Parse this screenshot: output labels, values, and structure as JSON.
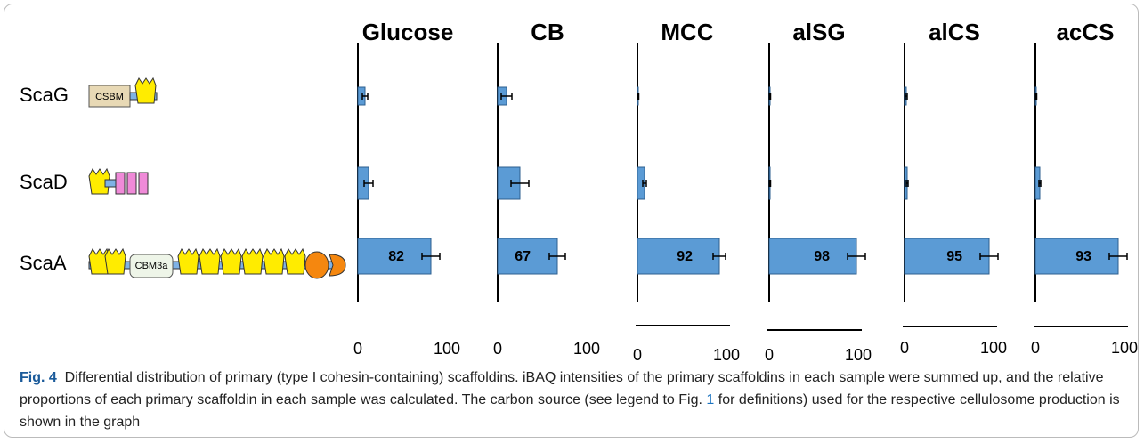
{
  "rows": [
    "ScaG",
    "ScaD",
    "ScaA"
  ],
  "diagrams": {
    "scag_module": "CSBM",
    "scaa_module": "CBM3a"
  },
  "chart_data": [
    {
      "type": "bar",
      "orientation": "horizontal",
      "title": "Glucose",
      "values": [
        8,
        12,
        82
      ],
      "errors": [
        3,
        5,
        10
      ],
      "data_labels": [
        false,
        false,
        true
      ],
      "color": "#5b9bd5",
      "xlim": [
        0,
        100
      ],
      "xticks": [
        0,
        100
      ]
    },
    {
      "type": "bar",
      "orientation": "horizontal",
      "title": "CB",
      "values": [
        10,
        25,
        67
      ],
      "errors": [
        6,
        10,
        9
      ],
      "data_labels": [
        false,
        false,
        true
      ],
      "color": "#5b9bd5",
      "xlim": [
        0,
        100
      ],
      "xticks": [
        0,
        100
      ]
    },
    {
      "type": "bar",
      "orientation": "horizontal",
      "title": "MCC",
      "values": [
        1,
        8,
        92
      ],
      "errors": [
        0.5,
        2,
        7
      ],
      "data_labels": [
        false,
        false,
        true
      ],
      "color": "#5b9bd5",
      "xlim": [
        0,
        100
      ],
      "xticks": [
        0,
        100
      ]
    },
    {
      "type": "bar",
      "orientation": "horizontal",
      "title": "alSG",
      "values": [
        1,
        1,
        98
      ],
      "errors": [
        0.5,
        0.5,
        10
      ],
      "data_labels": [
        false,
        false,
        true
      ],
      "color": "#5b9bd5",
      "xlim": [
        0,
        100
      ],
      "xticks": [
        0,
        100
      ]
    },
    {
      "type": "bar",
      "orientation": "horizontal",
      "title": "alCS",
      "values": [
        2,
        3,
        95
      ],
      "errors": [
        1,
        1,
        10
      ],
      "data_labels": [
        false,
        false,
        true
      ],
      "color": "#5b9bd5",
      "xlim": [
        0,
        100
      ],
      "xticks": [
        0,
        100
      ]
    },
    {
      "type": "bar",
      "orientation": "horizontal",
      "title": "acCS",
      "values": [
        1,
        5,
        93
      ],
      "errors": [
        0.5,
        1,
        10
      ],
      "data_labels": [
        false,
        false,
        true
      ],
      "color": "#5b9bd5",
      "xlim": [
        0,
        100
      ],
      "xticks": [
        0,
        100
      ]
    }
  ],
  "caption": {
    "label": "Fig. 4",
    "text_before": "Differential distribution of primary (type I cohesin-containing) scaffoldins. iBAQ intensities of the primary scaffoldins in each sample were summed up, and the relative proportions of each primary scaffoldin in each sample was calculated. The carbon source (see legend to Fig.",
    "link": "1",
    "text_after": "for definitions) used for the respective cellulosome production is shown in the graph"
  }
}
